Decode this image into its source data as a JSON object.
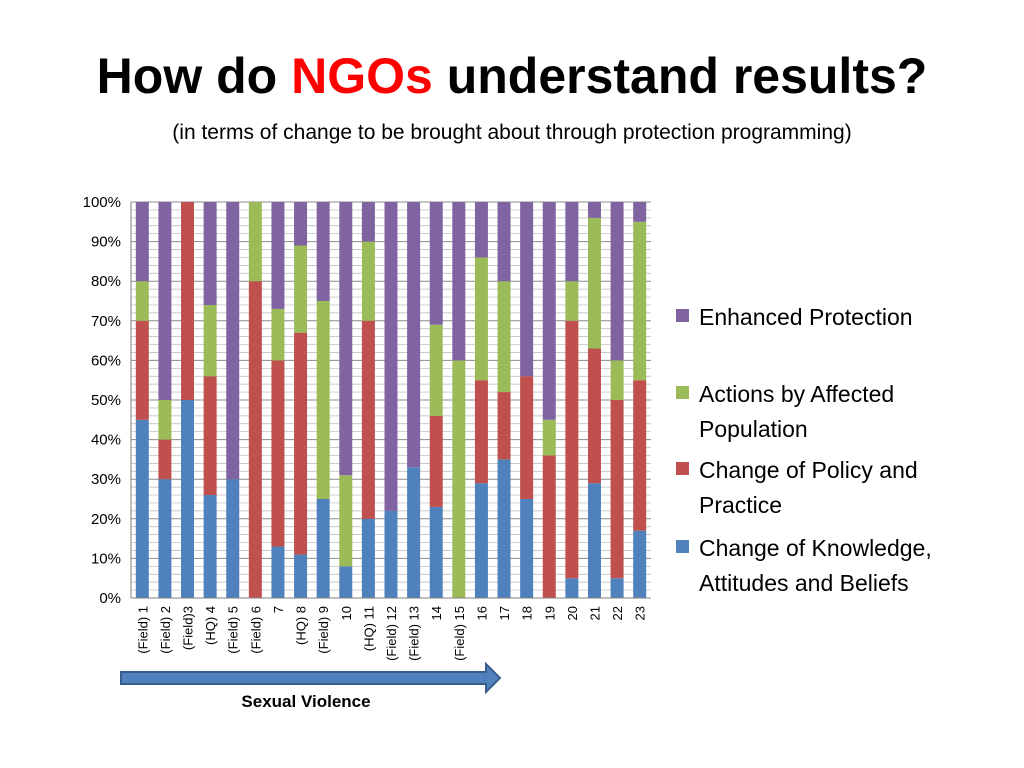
{
  "slide": {
    "title_prefix": "How do ",
    "title_accent": "NGOs",
    "title_suffix": " understand results?",
    "subtitle": "(in terms of change to be brought about through protection programming)",
    "accent_color": "#ff0000"
  },
  "chart_data": {
    "type": "bar",
    "stacked": true,
    "percent_stacked": true,
    "categories": [
      "(Field) 1",
      "(Field) 2",
      "(Field)3",
      "(HQ) 4",
      "(Field) 5",
      "(Field) 6",
      "7",
      "(HQ) 8",
      "(Field) 9",
      "10",
      "(HQ) 11",
      "(Field) 12",
      "(Field) 13",
      "14",
      "(Field) 15",
      "16",
      "17",
      "18",
      "19",
      "20",
      "21",
      "22",
      "23"
    ],
    "series": [
      {
        "name": "Change of Knowledge, Attitudes and Beliefs",
        "color": "#4f81bd",
        "values": [
          45,
          30,
          50,
          26,
          30,
          0,
          13,
          11,
          25,
          8,
          20,
          22,
          33,
          23,
          0,
          29,
          35,
          25,
          0,
          5,
          29,
          5,
          17
        ]
      },
      {
        "name": "Change of Policy and Practice",
        "color": "#c0504d",
        "values": [
          25,
          10,
          50,
          30,
          0,
          80,
          47,
          56,
          0,
          0,
          50,
          0,
          0,
          23,
          0,
          26,
          17,
          31,
          36,
          65,
          34,
          45,
          38
        ]
      },
      {
        "name": "Actions by Affected Population",
        "color": "#9bbb59",
        "values": [
          10,
          10,
          0,
          18,
          0,
          20,
          13,
          22,
          50,
          23,
          20,
          0,
          0,
          23,
          60,
          31,
          28,
          0,
          9,
          10,
          33,
          10,
          40
        ]
      },
      {
        "name": "Enhanced Protection",
        "color": "#8064a2",
        "values": [
          20,
          50,
          0,
          26,
          70,
          0,
          27,
          11,
          25,
          69,
          10,
          78,
          67,
          31,
          40,
          14,
          20,
          44,
          55,
          20,
          4,
          40,
          5
        ]
      }
    ],
    "legend_order": [
      "Enhanced Protection",
      "Actions by Affected Population",
      "Change of Policy and Practice",
      "Change of Knowledge, Attitudes and Beliefs"
    ],
    "legend_position": "right",
    "ylim": [
      0,
      100
    ],
    "yticks": [
      "0%",
      "10%",
      "20%",
      "30%",
      "40%",
      "50%",
      "60%",
      "70%",
      "80%",
      "90%",
      "100%"
    ],
    "grid": true,
    "xlabel": "",
    "ylabel": "",
    "annotation": "Sexual Violence"
  }
}
